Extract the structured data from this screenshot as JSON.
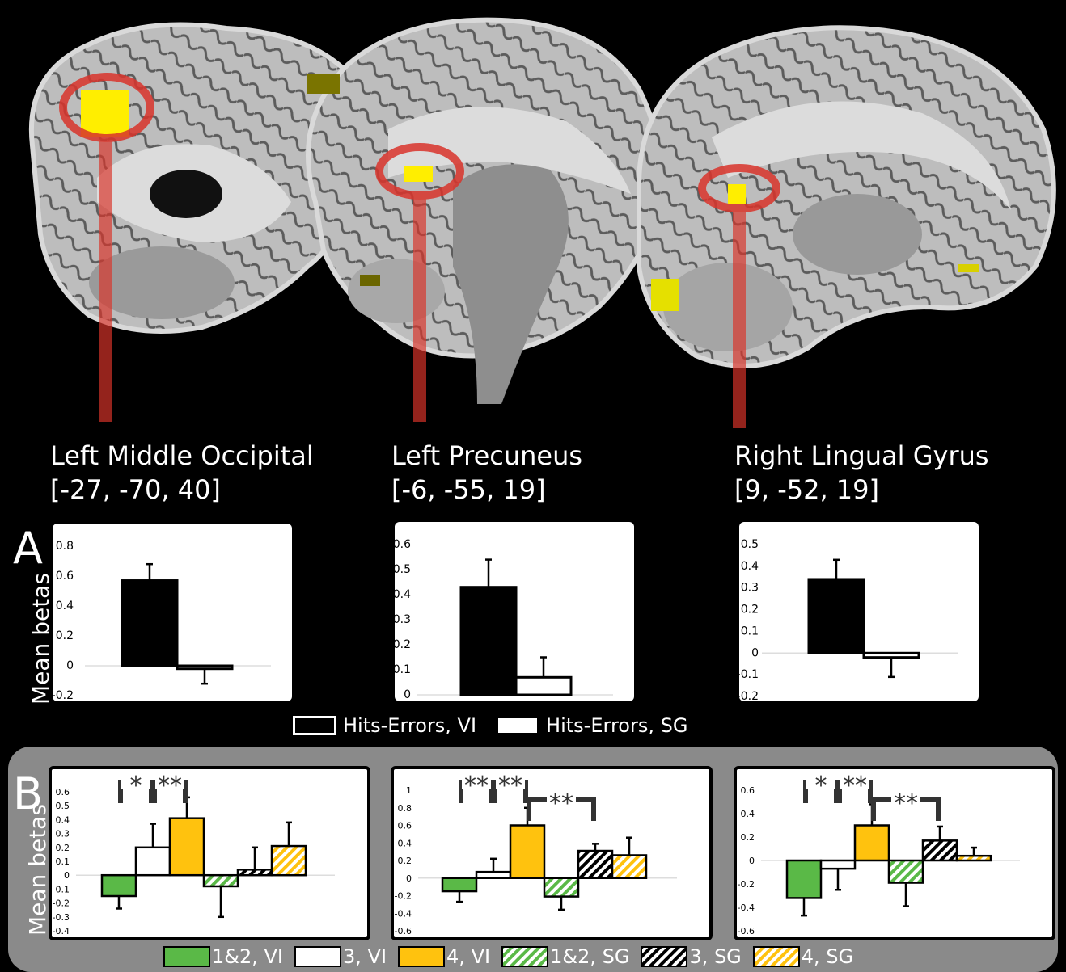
{
  "regions": [
    {
      "name": "Left Middle Occipital",
      "coords": "[-27, -70, 40]"
    },
    {
      "name": "Left Precuneus",
      "coords": "[-6, -55, 19]"
    },
    {
      "name": "Right Lingual Gyrus",
      "coords": "[9, -52, 19]"
    }
  ],
  "panel_a": {
    "letter": "A",
    "ylabel": "Mean betas"
  },
  "panel_b": {
    "letter": "B",
    "ylabel": "Mean betas"
  },
  "legend_a": {
    "item1": "Hits-Errors, VI",
    "item2": "Hits-Errors, SG"
  },
  "legend_b": [
    "1&2, VI",
    "3, VI",
    "4, VI",
    "1&2, SG",
    "3, SG",
    "4, SG"
  ],
  "colors": {
    "green": "#5ab947",
    "orange": "#ffc20e",
    "black": "#000000",
    "white": "#ffffff",
    "roi_red": "#d9342b",
    "activation": "#ffee00"
  },
  "chart_data": [
    {
      "type": "bar",
      "panel": "A",
      "region": "Left Middle Occipital",
      "series": [
        {
          "name": "Hits-Errors, VI",
          "value": 0.57,
          "err": 0.11
        },
        {
          "name": "Hits-Errors, SG",
          "value": -0.02,
          "err": 0.1
        }
      ],
      "ylim": [
        -0.2,
        0.8
      ],
      "yticks": [
        "0.8",
        "0.6",
        "0.4",
        "0.2",
        "0",
        "-0.2"
      ],
      "ytick_values": [
        0.8,
        0.6,
        0.4,
        0.2,
        0,
        -0.2
      ]
    },
    {
      "type": "bar",
      "panel": "A",
      "region": "Left Precuneus",
      "series": [
        {
          "name": "Hits-Errors, VI",
          "value": 0.43,
          "err": 0.11
        },
        {
          "name": "Hits-Errors, SG",
          "value": 0.07,
          "err": 0.08
        }
      ],
      "ylim": [
        0,
        0.6
      ],
      "yticks": [
        "0.6",
        "0.5",
        "0.4",
        "0.3",
        "0.2",
        "0.1",
        "0"
      ],
      "ytick_values": [
        0.6,
        0.5,
        0.4,
        0.3,
        0.2,
        0.1,
        0
      ]
    },
    {
      "type": "bar",
      "panel": "A",
      "region": "Right Lingual Gyrus",
      "series": [
        {
          "name": "Hits-Errors, VI",
          "value": 0.34,
          "err": 0.09
        },
        {
          "name": "Hits-Errors, SG",
          "value": -0.02,
          "err": 0.09
        }
      ],
      "ylim": [
        -0.2,
        0.5
      ],
      "yticks": [
        "0.5",
        "0.4",
        "0.3",
        "0.2",
        "0.1",
        "0",
        "-0.1",
        "-0.2"
      ],
      "ytick_values": [
        0.5,
        0.4,
        0.3,
        0.2,
        0.1,
        0,
        -0.1,
        -0.2
      ]
    },
    {
      "type": "bar",
      "panel": "B",
      "region": "Left Middle Occipital",
      "series": [
        {
          "name": "1&2, VI",
          "value": -0.15,
          "err": 0.09
        },
        {
          "name": "3, VI",
          "value": 0.2,
          "err": 0.17
        },
        {
          "name": "4, VI",
          "value": 0.41,
          "err": 0.15
        },
        {
          "name": "1&2, SG",
          "value": -0.08,
          "err": 0.22
        },
        {
          "name": "3, SG",
          "value": 0.04,
          "err": 0.16
        },
        {
          "name": "4, SG",
          "value": 0.21,
          "err": 0.17
        }
      ],
      "ylim": [
        -0.4,
        0.6
      ],
      "yticks": [
        "0.6",
        "0.5",
        "0.4",
        "0.3",
        "0.2",
        "0.1",
        "0",
        "-0.1",
        "-0.2",
        "-0.3",
        "-0.4"
      ],
      "ytick_values": [
        0.6,
        0.5,
        0.4,
        0.3,
        0.2,
        0.1,
        0,
        -0.1,
        -0.2,
        -0.3,
        -0.4
      ],
      "significance": [
        {
          "from": 0,
          "to": 1,
          "label": "*"
        },
        {
          "from": 1,
          "to": 2,
          "label": "**"
        }
      ]
    },
    {
      "type": "bar",
      "panel": "B",
      "region": "Left Precuneus",
      "series": [
        {
          "name": "1&2, VI",
          "value": -0.15,
          "err": 0.12
        },
        {
          "name": "3, VI",
          "value": 0.07,
          "err": 0.15
        },
        {
          "name": "4, VI",
          "value": 0.6,
          "err": 0.2
        },
        {
          "name": "1&2, SG",
          "value": -0.21,
          "err": 0.15
        },
        {
          "name": "3, SG",
          "value": 0.31,
          "err": 0.08
        },
        {
          "name": "4, SG",
          "value": 0.26,
          "err": 0.2
        }
      ],
      "ylim": [
        -0.6,
        1
      ],
      "yticks": [
        "1",
        "0.8",
        "0.6",
        "0.4",
        "0.2",
        "0",
        "-0.2",
        "-0.4",
        "-0.6"
      ],
      "ytick_values": [
        1,
        0.8,
        0.6,
        0.4,
        0.2,
        0,
        -0.2,
        -0.4,
        -0.6
      ],
      "significance": [
        {
          "from": 0,
          "to": 1,
          "label": "**"
        },
        {
          "from": 1,
          "to": 2,
          "label": "**"
        },
        {
          "from": 2,
          "to": 4,
          "label": "**"
        }
      ]
    },
    {
      "type": "bar",
      "panel": "B",
      "region": "Right Lingual Gyrus",
      "series": [
        {
          "name": "1&2, VI",
          "value": -0.32,
          "err": 0.15
        },
        {
          "name": "3, VI",
          "value": -0.07,
          "err": 0.18
        },
        {
          "name": "4, VI",
          "value": 0.3,
          "err": 0.18
        },
        {
          "name": "1&2, SG",
          "value": -0.19,
          "err": 0.2
        },
        {
          "name": "3, SG",
          "value": 0.17,
          "err": 0.12
        },
        {
          "name": "4, SG",
          "value": 0.04,
          "err": 0.07
        }
      ],
      "ylim": [
        -0.6,
        0.6
      ],
      "yticks": [
        "0.6",
        "0.4",
        "0.2",
        "0",
        "-0.2",
        "-0.4",
        "-0.6"
      ],
      "ytick_values": [
        0.6,
        0.4,
        0.2,
        0,
        -0.2,
        -0.4,
        -0.6
      ],
      "significance": [
        {
          "from": 0,
          "to": 1,
          "label": "*"
        },
        {
          "from": 1,
          "to": 2,
          "label": "**"
        },
        {
          "from": 2,
          "to": 4,
          "label": "**"
        }
      ]
    }
  ]
}
